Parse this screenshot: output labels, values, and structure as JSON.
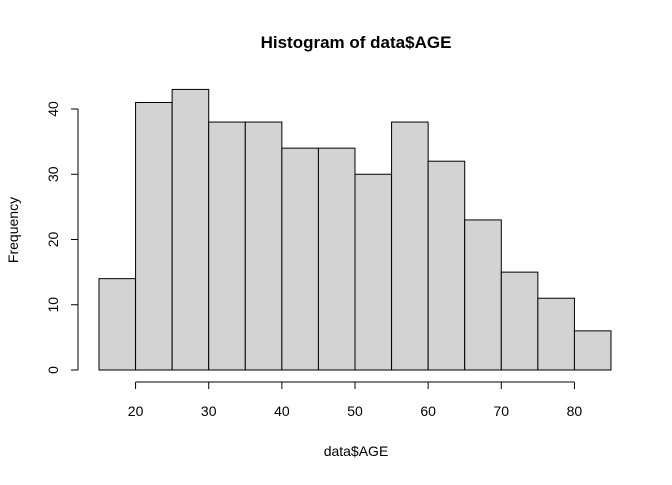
{
  "chart_data": {
    "type": "bar",
    "title": "Histogram of data$AGE",
    "xlabel": "data$AGE",
    "ylabel": "Frequency",
    "bins": [
      {
        "from": 15,
        "to": 20,
        "value": 14
      },
      {
        "from": 20,
        "to": 25,
        "value": 41
      },
      {
        "from": 25,
        "to": 30,
        "value": 43
      },
      {
        "from": 30,
        "to": 35,
        "value": 38
      },
      {
        "from": 35,
        "to": 40,
        "value": 38
      },
      {
        "from": 40,
        "to": 45,
        "value": 34
      },
      {
        "from": 45,
        "to": 50,
        "value": 34
      },
      {
        "from": 50,
        "to": 55,
        "value": 30
      },
      {
        "from": 55,
        "to": 60,
        "value": 38
      },
      {
        "from": 60,
        "to": 65,
        "value": 32
      },
      {
        "from": 65,
        "to": 70,
        "value": 23
      },
      {
        "from": 70,
        "to": 75,
        "value": 15
      },
      {
        "from": 75,
        "to": 80,
        "value": 11
      },
      {
        "from": 80,
        "to": 85,
        "value": 6
      }
    ],
    "x_ticks": [
      "20",
      "30",
      "40",
      "50",
      "60",
      "70",
      "80"
    ],
    "y_ticks": [
      "0",
      "10",
      "20",
      "30",
      "40"
    ],
    "bar_fill": "#d3d3d3",
    "bar_stroke": "#000000",
    "grid": false,
    "legend": "none"
  }
}
